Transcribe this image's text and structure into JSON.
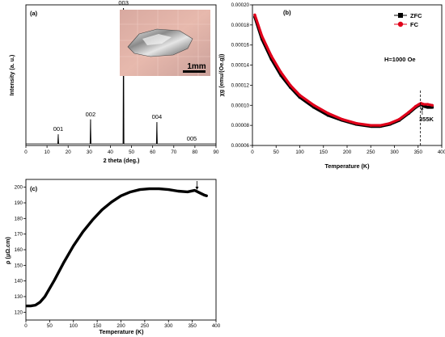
{
  "chart_data": [
    {
      "type": "line",
      "panel": "(a)",
      "xlabel": "2 theta (deg.)",
      "ylabel": "Intensity (a. u.)",
      "xlim": [
        0,
        90
      ],
      "xticks": [
        0,
        10,
        20,
        30,
        40,
        50,
        60,
        70,
        80,
        90
      ],
      "peaks": [
        {
          "x": 15.3,
          "y": 0.07,
          "label": "001"
        },
        {
          "x": 30.6,
          "y": 0.18,
          "label": "002"
        },
        {
          "x": 46.2,
          "y": 1.0,
          "label": "003"
        },
        {
          "x": 62.0,
          "y": 0.16,
          "label": "004"
        },
        {
          "x": 78.5,
          "y": 0.0,
          "label": "005"
        }
      ],
      "inset": {
        "scale_bar_label": "1mm"
      }
    },
    {
      "type": "line",
      "panel": "(b)",
      "xlabel": "Temperature (K)",
      "ylabel": "χg (emu/(Oe.g))",
      "xlim": [
        0,
        400
      ],
      "ylim": [
        6e-05,
        0.0002
      ],
      "xticks": [
        0,
        50,
        100,
        150,
        200,
        250,
        300,
        350,
        400
      ],
      "yticks": [
        "0.00006",
        "0.00008",
        "0.00010",
        "0.00012",
        "0.00014",
        "0.00016",
        "0.00018",
        "0.00020"
      ],
      "annotation_field": "H=1000 Oe",
      "annotation_point": "355K",
      "legend_position": "top-right",
      "series": [
        {
          "name": "ZFC",
          "color": "#000000",
          "x": [
            5,
            20,
            40,
            60,
            80,
            100,
            130,
            160,
            190,
            220,
            250,
            270,
            290,
            310,
            330,
            345,
            352,
            356,
            362,
            370,
            380
          ],
          "y": [
            0.000188,
            0.000166,
            0.000146,
            0.00013,
            0.000118,
            0.000108,
            9.8e-05,
            9e-05,
            8.5e-05,
            8.1e-05,
            7.9e-05,
            7.9e-05,
            8.1e-05,
            8.5e-05,
            9.2e-05,
            9.8e-05,
            0.0001,
            0.000101,
            9.9e-05,
            9.8e-05,
            9.8e-05
          ]
        },
        {
          "name": "FC",
          "color": "#e0001a",
          "x": [
            5,
            20,
            40,
            60,
            80,
            100,
            130,
            160,
            190,
            220,
            250,
            270,
            290,
            310,
            330,
            345,
            352,
            356,
            362,
            370,
            380
          ],
          "y": [
            0.00019,
            0.000169,
            0.000149,
            0.000133,
            0.00012,
            0.00011,
            0.0001,
            9.2e-05,
            8.6e-05,
            8.2e-05,
            8e-05,
            8e-05,
            8.2e-05,
            8.6e-05,
            9.3e-05,
            9.9e-05,
            0.000101,
            0.000102,
            0.000101,
            0.000101,
            0.0001
          ]
        }
      ],
      "marker_x": 355
    },
    {
      "type": "line",
      "panel": "(c)",
      "xlabel": "Temperature (K)",
      "ylabel": "ρ (μΩ.cm)",
      "xlim": [
        0,
        400
      ],
      "ylim": [
        115,
        205
      ],
      "xticks": [
        0,
        50,
        100,
        150,
        200,
        250,
        300,
        350,
        400
      ],
      "yticks": [
        120,
        130,
        140,
        150,
        160,
        170,
        180,
        190,
        200
      ],
      "series": [
        {
          "name": "",
          "color": "#000000",
          "x": [
            2,
            10,
            20,
            30,
            40,
            60,
            80,
            100,
            120,
            140,
            160,
            180,
            200,
            220,
            240,
            260,
            280,
            300,
            320,
            340,
            355,
            365,
            375,
            380
          ],
          "y": [
            124.0,
            124.0,
            124.5,
            126.5,
            130.0,
            140.5,
            152.0,
            162.5,
            171.5,
            179.0,
            185.5,
            190.5,
            194.5,
            197.0,
            198.5,
            199.0,
            199.0,
            198.5,
            197.5,
            197.0,
            198.0,
            196.5,
            195.0,
            194.5
          ]
        }
      ],
      "arrow_x": 360
    }
  ]
}
